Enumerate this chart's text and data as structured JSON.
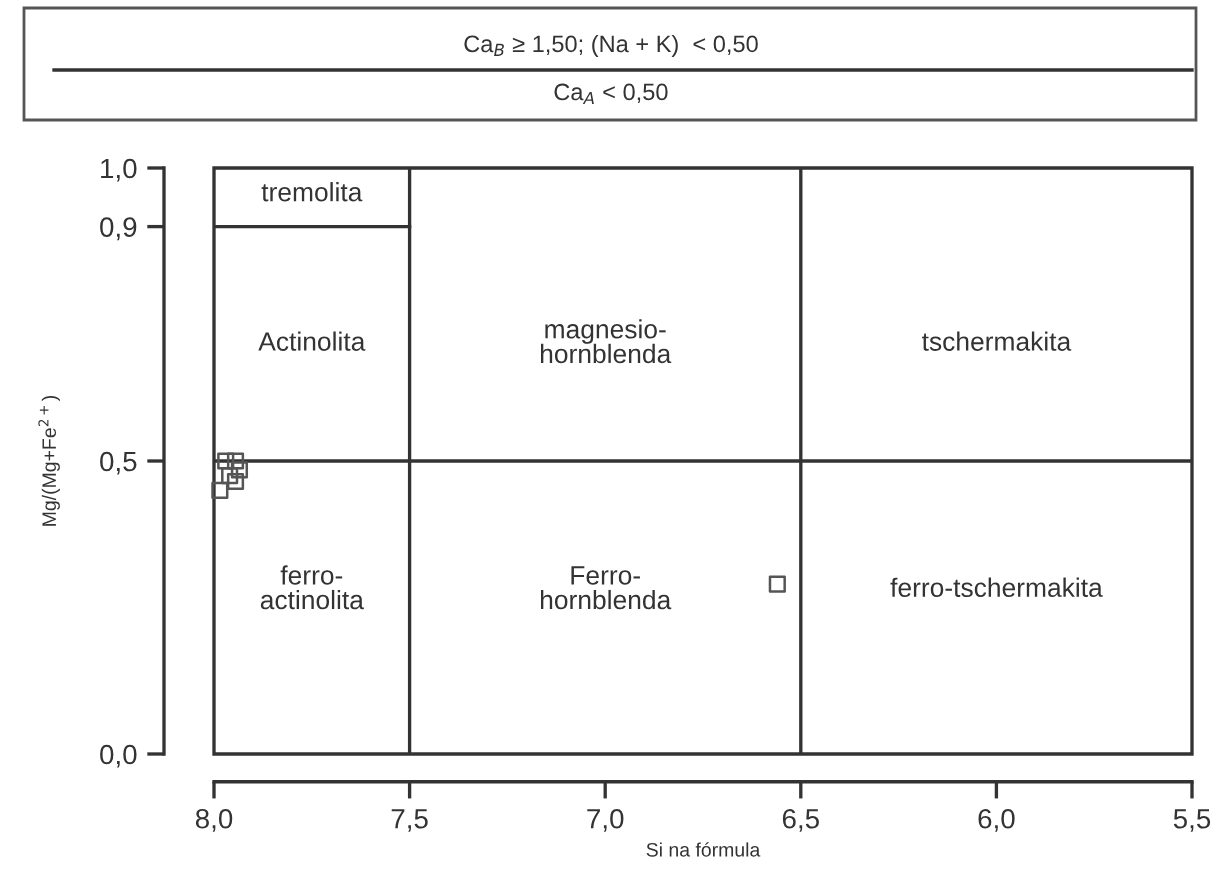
{
  "chart_data": {
    "type": "scatter",
    "title": "Ca$_{B}$ ≥ 1,50; (Na + K)  < 0,50",
    "subtitle": "Ca$_{A}$ < 0,50",
    "xlabel": "Si na fórmula",
    "ylabel": "Mg/(Mg+Fe$^{2+}$)",
    "xlim": [
      8.0,
      5.5
    ],
    "ylim": [
      0.0,
      1.0
    ],
    "xticks": [
      {
        "value": 8.0,
        "label": "8,0"
      },
      {
        "value": 7.5,
        "label": "7,5"
      },
      {
        "value": 7.0,
        "label": "7,0"
      },
      {
        "value": 6.5,
        "label": "6,5"
      },
      {
        "value": 6.0,
        "label": "6,0"
      },
      {
        "value": 5.5,
        "label": "5,5"
      }
    ],
    "yticks": [
      {
        "value": 0.0,
        "label": "0,0"
      },
      {
        "value": 0.5,
        "label": "0,5"
      },
      {
        "value": 0.9,
        "label": "0,9"
      },
      {
        "value": 1.0,
        "label": "1,0"
      }
    ],
    "grid": false,
    "legend": false,
    "marker": "square",
    "series": [
      {
        "color": "#555555",
        "x": [
          7.985,
          7.97,
          7.945,
          7.96,
          7.945,
          7.935,
          6.56
        ],
        "values": [
          0.45,
          0.5,
          0.5,
          0.475,
          0.465,
          0.485,
          0.29
        ]
      }
    ],
    "ref_lines": [
      {
        "axis": "x",
        "value": 7.5,
        "color": "#333333"
      },
      {
        "axis": "x",
        "value": 6.5,
        "color": "#333333"
      },
      {
        "axis": "y",
        "value": 0.5,
        "color": "#333333"
      }
    ],
    "annotations": [
      "tremolita",
      "Actinolita",
      "magnesio-\nhornblenda",
      "tschermakita",
      "ferro-\nactinolita",
      "Ferro-\nhornblenda",
      "ferro-tschermakita"
    ]
  }
}
